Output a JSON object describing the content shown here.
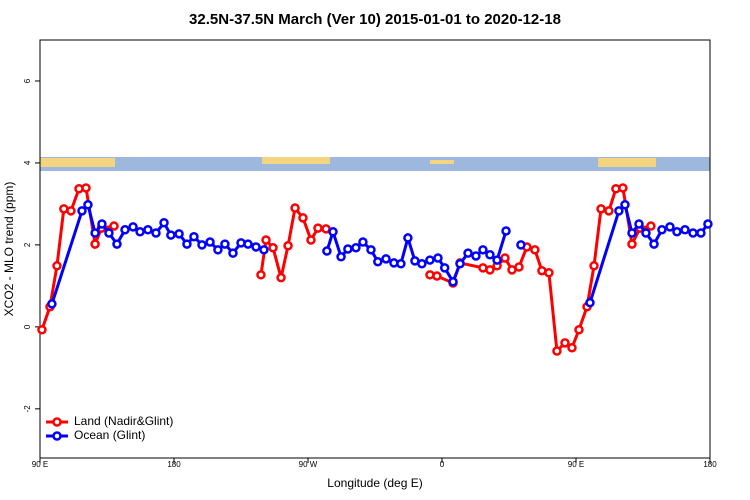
{
  "chart_data": {
    "type": "line",
    "title": "32.5N-37.5N March (Ver 10)   2015-01-01 to 2020-12-18",
    "x_label": "Longitude (deg E)",
    "y_label": "XCO2 - MLO trend (ppm)",
    "xlim": [
      90,
      540
    ],
    "xticks": [
      {
        "value": 90,
        "label": "90 E"
      },
      180,
      {
        "value": 270,
        "label": "90 W"
      },
      {
        "value": 360,
        "label": "0"
      },
      {
        "value": 450,
        "label": "90 E"
      },
      {
        "value": 540,
        "label": "180"
      }
    ],
    "ylim": [
      -3.2,
      7
    ],
    "yticks": [
      -2,
      0,
      2,
      4,
      6
    ],
    "legend": "bottom-left",
    "series": [
      {
        "name": "Land (Nadir&Glint)",
        "color": "#ff0000",
        "x": [
          91.3,
          96.7,
          101.4,
          106,
          110.8,
          116.2,
          120.9,
          127,
          131.3,
          139.7,
          null,
          238.4,
          241.8,
          246.5,
          251.9,
          256.6,
          261.3,
          266.6,
          272,
          276.7,
          282.1,
          null,
          351.9,
          356.6,
          367.4,
          372.1,
          387.5,
          392.2,
          397,
          402.3,
          407,
          411.7,
          417,
          422.4,
          427.1,
          431.8,
          437.2,
          442.6,
          447.3,
          452,
          457.4,
          462.1,
          466.8,
          472.1,
          476.8,
          481.5,
          487.6,
          493,
          500.3
        ],
        "values": [
          -0.07,
          0.49,
          1.49,
          2.88,
          2.83,
          3.37,
          3.39,
          2.02,
          2.41,
          2.46,
          null,
          1.27,
          2.12,
          1.93,
          1.2,
          1.98,
          2.9,
          2.66,
          2.12,
          2.41,
          2.39,
          null,
          1.27,
          1.24,
          1.07,
          1.56,
          1.44,
          1.39,
          1.49,
          1.68,
          1.39,
          1.46,
          1.95,
          1.88,
          1.37,
          1.32,
          -0.59,
          -0.39,
          -0.51,
          -0.07,
          0.49,
          1.49,
          2.88,
          2.83,
          3.37,
          3.39,
          2.02,
          2.41,
          2.46
        ]
      },
      {
        "name": "Ocean (Glint)",
        "color": "#0000ff",
        "x": [
          98,
          118.2,
          122.2,
          127,
          131.6,
          136.3,
          141.7,
          147.1,
          152.5,
          157.2,
          162.5,
          167.9,
          173.3,
          177.9,
          183.4,
          188.7,
          193.4,
          198.8,
          204.2,
          209.5,
          214.2,
          219.6,
          225,
          229.7,
          235.1,
          240.4,
          null,
          282.7,
          286.8,
          292.2,
          296.8,
          302.2,
          306.9,
          312.3,
          316.9,
          322.4,
          327.7,
          332.4,
          337.1,
          341.8,
          346.5,
          351.9,
          357.3,
          361.8,
          367.4,
          372.1,
          377.5,
          382.8,
          387.5,
          392.2,
          397,
          403,
          null,
          413,
          null,
          459.4,
          478.8,
          482.9,
          487.6,
          492.3,
          497,
          502.4,
          507.7,
          513.1,
          517.8,
          523.2,
          528.6,
          533.9,
          538.6
        ],
        "values": [
          0.56,
          2.83,
          2.98,
          2.29,
          2.51,
          2.29,
          2.02,
          2.37,
          2.44,
          2.32,
          2.37,
          2.29,
          2.54,
          2.24,
          2.27,
          2.02,
          2.2,
          2.0,
          2.07,
          1.88,
          2.02,
          1.8,
          2.05,
          2.02,
          1.95,
          1.88,
          null,
          1.85,
          2.32,
          1.71,
          1.9,
          1.93,
          2.07,
          1.88,
          1.59,
          1.66,
          1.56,
          1.54,
          2.17,
          1.61,
          1.54,
          1.63,
          1.68,
          1.44,
          1.1,
          1.54,
          1.8,
          1.73,
          1.88,
          1.76,
          1.63,
          2.34,
          null,
          2.0,
          null,
          0.59,
          2.83,
          2.98,
          2.29,
          2.51,
          2.29,
          2.02,
          2.37,
          2.44,
          2.32,
          2.37,
          2.29,
          2.29,
          2.51
        ]
      }
    ]
  }
}
